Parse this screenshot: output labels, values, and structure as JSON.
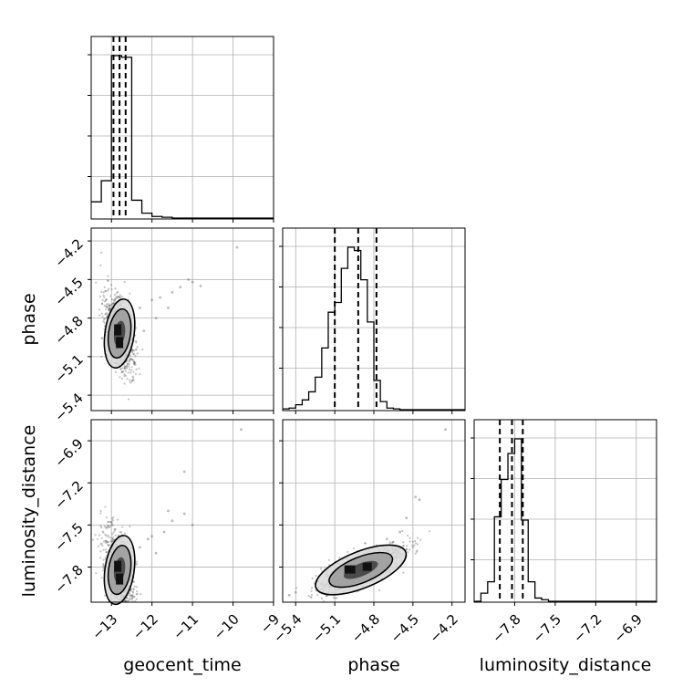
{
  "chart_data": [
    {
      "type": "histogram",
      "panel": "geocent_time marginal",
      "bin_edges": [
        -13.5,
        -13.25,
        -13.0,
        -12.75,
        -12.5,
        -12.25,
        -12.0,
        -11.75,
        -11.5,
        -11.25
      ],
      "counts": [
        0.1,
        0.23,
        1.0,
        0.99,
        0.11,
        0.03,
        0.01,
        0.005,
        0.0
      ],
      "quantiles": [
        -12.95,
        -12.8,
        -12.65
      ],
      "xlim": [
        -13.5,
        -9
      ],
      "xticks": [
        -13,
        -12,
        -11,
        -10,
        -9
      ],
      "grid": true
    },
    {
      "type": "histogram",
      "panel": "phase marginal",
      "bin_edges": [
        -5.5,
        -5.45,
        -5.4,
        -5.35,
        -5.3,
        -5.25,
        -5.2,
        -5.15,
        -5.1,
        -5.05,
        -5.0,
        -4.95,
        -4.9,
        -4.85,
        -4.8,
        -4.75,
        -4.7,
        -4.65,
        -4.6,
        -4.55,
        -4.5
      ],
      "counts": [
        0.005,
        0.01,
        0.03,
        0.06,
        0.11,
        0.2,
        0.38,
        0.6,
        0.66,
        0.87,
        1.0,
        0.98,
        0.8,
        0.54,
        0.18,
        0.05,
        0.01,
        0.005,
        0.0,
        0.0
      ],
      "quantiles": [
        -5.1,
        -4.92,
        -4.78
      ],
      "xlim": [
        -5.5,
        -4.1
      ],
      "xticks": [
        -5.4,
        -5.1,
        -4.8,
        -4.5,
        -4.2
      ],
      "grid": true
    },
    {
      "type": "histogram",
      "panel": "luminosity_distance marginal",
      "bin_edges": [
        -8.1,
        -8.05,
        -8.0,
        -7.95,
        -7.9,
        -7.85,
        -7.8,
        -7.75,
        -7.7,
        -7.65,
        -7.6,
        -7.55,
        -7.5
      ],
      "counts": [
        0.0,
        0.05,
        0.12,
        0.52,
        0.75,
        0.91,
        1.0,
        0.5,
        0.12,
        0.02,
        0.01,
        0.0
      ],
      "quantiles": [
        -7.91,
        -7.82,
        -7.74
      ],
      "xlim": [
        -8.1,
        -6.75
      ],
      "xticks": [
        -7.8,
        -7.5,
        -7.2,
        -6.9
      ],
      "grid": true
    },
    {
      "type": "scatter-density",
      "x": "geocent_time",
      "y": "phase",
      "center": [
        -12.8,
        -4.92
      ],
      "xlim": [
        -13.5,
        -9
      ],
      "ylim": [
        -5.52,
        -4.1
      ],
      "yticks": [
        -5.4,
        -5.1,
        -4.8,
        -4.5,
        -4.2
      ],
      "tail_points": [
        [
          -12.3,
          -4.72
        ],
        [
          -12.0,
          -4.66
        ],
        [
          -11.8,
          -4.64
        ],
        [
          -11.5,
          -4.6
        ],
        [
          -11.3,
          -4.56
        ],
        [
          -11.0,
          -4.52
        ],
        [
          -10.8,
          -4.55
        ],
        [
          -11.9,
          -4.8
        ],
        [
          -11.6,
          -4.72
        ],
        [
          -12.2,
          -4.9
        ],
        [
          -9.9,
          -4.25
        ],
        [
          -11.1,
          -4.5
        ]
      ],
      "grid": true
    },
    {
      "type": "scatter-density",
      "x": "geocent_time",
      "y": "luminosity_distance",
      "center": [
        -12.8,
        -7.82
      ],
      "xlim": [
        -13.5,
        -9
      ],
      "ylim": [
        -8.05,
        -6.75
      ],
      "yticks": [
        -7.8,
        -7.5,
        -7.2,
        -6.9
      ],
      "tail_points": [
        [
          -12.3,
          -7.66
        ],
        [
          -12.0,
          -7.58
        ],
        [
          -11.7,
          -7.55
        ],
        [
          -11.5,
          -7.47
        ],
        [
          -11.2,
          -7.42
        ],
        [
          -11.0,
          -7.5
        ],
        [
          -11.2,
          -7.12
        ],
        [
          -11.9,
          -7.7
        ],
        [
          -12.1,
          -7.6
        ],
        [
          -9.8,
          -6.82
        ],
        [
          -11.6,
          -7.4
        ]
      ],
      "grid": true
    },
    {
      "type": "scatter-density",
      "x": "phase",
      "y": "luminosity_distance",
      "center": [
        -4.9,
        -7.82
      ],
      "xlim": [
        -5.5,
        -4.1
      ],
      "ylim": [
        -8.05,
        -6.75
      ],
      "tail_points": [
        [
          -4.6,
          -7.55
        ],
        [
          -4.55,
          -7.45
        ],
        [
          -4.48,
          -7.3
        ],
        [
          -4.45,
          -7.32
        ],
        [
          -4.7,
          -7.6
        ],
        [
          -4.25,
          -6.82
        ],
        [
          -5.45,
          -8.0
        ],
        [
          -5.4,
          -7.98
        ]
      ],
      "grid": true
    }
  ],
  "labels": {
    "geocent_time": "geocent_time",
    "phase": "phase",
    "luminosity_distance": "luminosity_distance"
  },
  "colors": {
    "axes": "#000000",
    "grid": "#b0b0b0",
    "points": "#555555"
  }
}
